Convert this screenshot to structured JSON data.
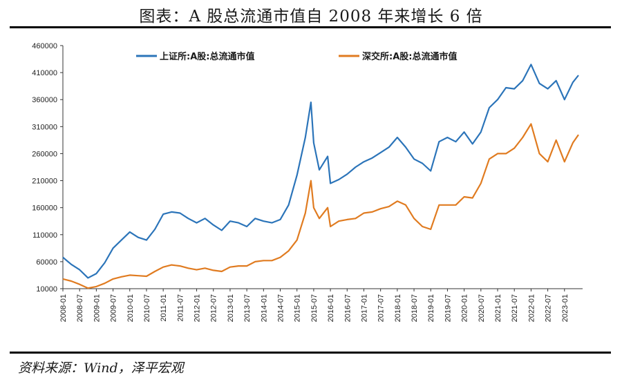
{
  "title": "图表：A 股总流通市值自 2008 年来增长 6 倍",
  "source": "资料来源：Wind，泽平宏观",
  "chart_data": {
    "type": "line",
    "title": "图表：A 股总流通市值自 2008 年来增长 6 倍",
    "xlabel": "",
    "ylabel": "",
    "ylim": [
      10000,
      460000
    ],
    "yticks": [
      10000,
      60000,
      110000,
      160000,
      210000,
      260000,
      310000,
      360000,
      410000,
      460000
    ],
    "ytick_labels": [
      "10000",
      "60000",
      "110000",
      "160000",
      "210000",
      "260000",
      "310000",
      "360000",
      "410000",
      "460000"
    ],
    "xtick_labels": [
      "2008-01",
      "2008-07",
      "2009-01",
      "2009-07",
      "2010-01",
      "2010-07",
      "2011-01",
      "2011-07",
      "2012-01",
      "2012-07",
      "2013-01",
      "2013-07",
      "2014-01",
      "2014-07",
      "2015-01",
      "2015-07",
      "2016-01",
      "2016-07",
      "2017-01",
      "2017-07",
      "2018-01",
      "2018-07",
      "2019-01",
      "2019-07",
      "2020-01",
      "2020-07",
      "2021-01",
      "2021-07",
      "2022-01",
      "2022-07",
      "2023-01"
    ],
    "grid": false,
    "legend_position": "top",
    "x": [
      "2008-01",
      "2008-04",
      "2008-07",
      "2008-10",
      "2009-01",
      "2009-04",
      "2009-07",
      "2009-10",
      "2010-01",
      "2010-04",
      "2010-07",
      "2010-10",
      "2011-01",
      "2011-04",
      "2011-07",
      "2011-10",
      "2012-01",
      "2012-04",
      "2012-07",
      "2012-10",
      "2013-01",
      "2013-04",
      "2013-07",
      "2013-10",
      "2014-01",
      "2014-04",
      "2014-07",
      "2014-10",
      "2015-01",
      "2015-04",
      "2015-06",
      "2015-07",
      "2015-09",
      "2015-12",
      "2016-01",
      "2016-04",
      "2016-07",
      "2016-10",
      "2017-01",
      "2017-04",
      "2017-07",
      "2017-10",
      "2018-01",
      "2018-04",
      "2018-07",
      "2018-10",
      "2019-01",
      "2019-04",
      "2019-07",
      "2019-10",
      "2020-01",
      "2020-04",
      "2020-07",
      "2020-10",
      "2021-01",
      "2021-04",
      "2021-07",
      "2021-10",
      "2022-01",
      "2022-04",
      "2022-07",
      "2022-10",
      "2023-01",
      "2023-04",
      "2023-06"
    ],
    "series": [
      {
        "name": "上证所:A股:总流通市值",
        "color": "#2b74b9",
        "values": [
          68000,
          55000,
          45000,
          30000,
          38000,
          58000,
          85000,
          100000,
          115000,
          105000,
          100000,
          120000,
          148000,
          152000,
          150000,
          140000,
          132000,
          140000,
          128000,
          118000,
          135000,
          132000,
          125000,
          140000,
          135000,
          132000,
          138000,
          165000,
          220000,
          290000,
          355000,
          280000,
          230000,
          255000,
          205000,
          212000,
          222000,
          235000,
          245000,
          252000,
          262000,
          272000,
          290000,
          272000,
          250000,
          242000,
          228000,
          282000,
          290000,
          282000,
          300000,
          278000,
          300000,
          345000,
          360000,
          382000,
          380000,
          395000,
          425000,
          390000,
          380000,
          395000,
          360000,
          392000,
          405000
        ]
      },
      {
        "name": "深交所:A股:总流通市值",
        "color": "#e07b20",
        "values": [
          28000,
          24000,
          18000,
          11000,
          14000,
          20000,
          28000,
          32000,
          35000,
          34000,
          33000,
          42000,
          50000,
          54000,
          52000,
          48000,
          45000,
          48000,
          44000,
          42000,
          50000,
          52000,
          52000,
          60000,
          62000,
          62000,
          68000,
          80000,
          100000,
          150000,
          210000,
          160000,
          140000,
          160000,
          125000,
          135000,
          138000,
          140000,
          150000,
          152000,
          158000,
          162000,
          172000,
          165000,
          140000,
          125000,
          120000,
          165000,
          165000,
          165000,
          180000,
          178000,
          205000,
          250000,
          260000,
          260000,
          270000,
          290000,
          315000,
          260000,
          245000,
          285000,
          245000,
          280000,
          295000
        ]
      }
    ]
  }
}
